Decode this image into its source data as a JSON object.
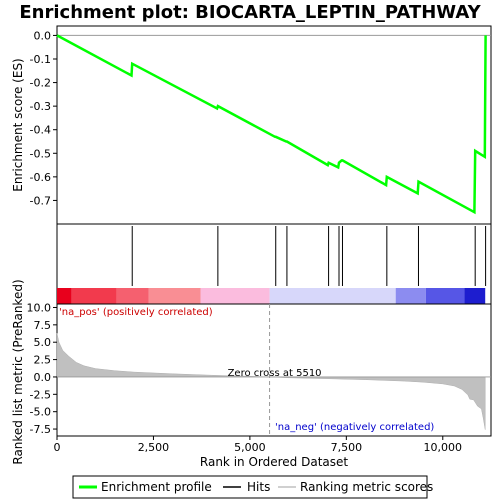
{
  "chart_data": [
    {
      "type": "line",
      "title": "Enrichment plot: BIOCARTA_LEPTIN_PATHWAY",
      "ylabel": "Enrichment score (ES)",
      "xlim": [
        0,
        11250
      ],
      "ylim": [
        -0.8,
        0.04
      ],
      "yticks": [
        0.0,
        -0.1,
        -0.2,
        -0.3,
        -0.4,
        -0.5,
        -0.6,
        -0.7
      ],
      "ytick_labels": [
        "0.0",
        "-0.1",
        "-0.2",
        "-0.3",
        "-0.4",
        "-0.5",
        "-0.6",
        "-0.7"
      ],
      "series": [
        {
          "name": "Enrichment profile",
          "color": "#00ff00",
          "x": [
            0,
            1930,
            1950,
            4150,
            4170,
            5650,
            5670,
            5940,
            5960,
            7020,
            7040,
            7290,
            7310,
            7380,
            7400,
            8530,
            8550,
            9350,
            9370,
            10820,
            10840,
            11090,
            11110
          ],
          "y": [
            0.0,
            -0.17,
            -0.12,
            -0.31,
            -0.3,
            -0.43,
            -0.43,
            -0.45,
            -0.45,
            -0.55,
            -0.54,
            -0.56,
            -0.54,
            -0.53,
            -0.53,
            -0.635,
            -0.6,
            -0.67,
            -0.62,
            -0.75,
            -0.49,
            -0.515,
            0.0
          ]
        }
      ]
    },
    {
      "type": "scatter",
      "name": "hits",
      "hit_positions": [
        1950,
        4170,
        5670,
        5960,
        7040,
        7310,
        7400,
        8550,
        9370,
        10840,
        11110
      ]
    },
    {
      "type": "area",
      "ylabel": "Ranked list metric (PreRanked)",
      "xlabel": "Rank in Ordered Dataset",
      "xlim": [
        0,
        11250
      ],
      "ylim": [
        -8.5,
        10.5
      ],
      "xticks": [
        0,
        2500,
        5000,
        7500,
        10000
      ],
      "xtick_labels": [
        "0",
        "2,500",
        "5,000",
        "7,500",
        "10,000"
      ],
      "yticks": [
        10.0,
        7.5,
        5.0,
        2.5,
        0.0,
        -2.5,
        -5.0,
        -7.5
      ],
      "ytick_labels": [
        "10.0",
        "7.5",
        "5.0",
        "2.5",
        "0.0",
        "-2.5",
        "-5.0",
        "-7.5"
      ],
      "x": [
        0,
        50,
        150,
        300,
        500,
        700,
        1000,
        1500,
        2000,
        3000,
        4000,
        5000,
        5510,
        6000,
        7000,
        8000,
        9000,
        9500,
        10000,
        10300,
        10500,
        10650,
        10700,
        10800,
        10900,
        11000,
        11050,
        11100
      ],
      "y": [
        6.3,
        5.0,
        3.8,
        3.0,
        2.1,
        1.6,
        1.2,
        0.9,
        0.7,
        0.45,
        0.25,
        0.1,
        0.0,
        -0.12,
        -0.25,
        -0.4,
        -0.6,
        -0.75,
        -1.0,
        -1.3,
        -1.8,
        -2.6,
        -3.2,
        -3.3,
        -4.2,
        -4.6,
        -6.0,
        -7.6
      ],
      "color": "#c0c0c0",
      "zero_cross_label": "Zero cross at 5510",
      "zero_cross": 5510,
      "pos_label": "'na_pos' (positively correlated)",
      "neg_label": "'na_neg' (negatively correlated)"
    }
  ],
  "color_bar": [
    {
      "from": 0,
      "to": 380,
      "color": "#e8001c"
    },
    {
      "from": 380,
      "to": 1550,
      "color": "#f23a4d"
    },
    {
      "from": 1550,
      "to": 2380,
      "color": "#f5606f"
    },
    {
      "from": 2380,
      "to": 3720,
      "color": "#f98e94"
    },
    {
      "from": 3720,
      "to": 5510,
      "color": "#fbbcde"
    },
    {
      "from": 5510,
      "to": 8780,
      "color": "#d7d7fa"
    },
    {
      "from": 8780,
      "to": 9560,
      "color": "#8c8cf0"
    },
    {
      "from": 9560,
      "to": 10560,
      "color": "#5656e6"
    },
    {
      "from": 10560,
      "to": 11100,
      "color": "#1d1dcf"
    }
  ],
  "legend": {
    "items": [
      {
        "label": "Enrichment profile",
        "color": "#00ff00"
      },
      {
        "label": "Hits",
        "color": "#000000"
      },
      {
        "label": "Ranking metric scores",
        "color": "#c0c0c0"
      }
    ]
  }
}
